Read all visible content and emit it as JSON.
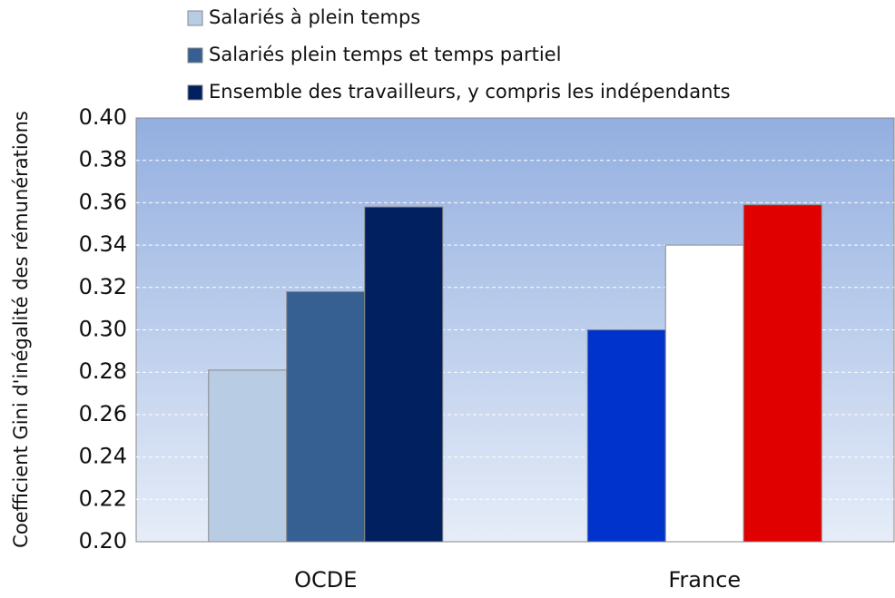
{
  "chart_data": {
    "type": "bar",
    "y_label": "Coefficient Gini d'inégalité des rémunérations",
    "categories": [
      "OCDE",
      "France"
    ],
    "series": [
      {
        "name": "Salariés à plein temps",
        "color": "#b8cce4",
        "bar_colors": [
          "#b8cce4",
          "#0033cc"
        ],
        "values": [
          0.281,
          0.3
        ]
      },
      {
        "name": "Salariés plein temps et temps partiel",
        "color": "#376092",
        "bar_colors": [
          "#376092",
          "#ffffff"
        ],
        "values": [
          0.318,
          0.34
        ]
      },
      {
        "name": "Ensemble des travailleurs, y compris les indépendants",
        "color": "#002060",
        "bar_colors": [
          "#002060",
          "#e00000"
        ],
        "values": [
          0.358,
          0.359
        ]
      }
    ],
    "ylim": [
      0.2,
      0.4
    ],
    "yticks": [
      {
        "value": 0.2,
        "label": "0.20"
      },
      {
        "value": 0.22,
        "label": "0.22"
      },
      {
        "value": 0.24,
        "label": "0.24"
      },
      {
        "value": 0.26,
        "label": "0.26"
      },
      {
        "value": 0.28,
        "label": "0.28"
      },
      {
        "value": 0.3,
        "label": "0.30"
      },
      {
        "value": 0.32,
        "label": "0.32"
      },
      {
        "value": 0.34,
        "label": "0.34"
      },
      {
        "value": 0.36,
        "label": "0.36"
      },
      {
        "value": 0.38,
        "label": "0.38"
      },
      {
        "value": 0.4,
        "label": "0.40"
      }
    ],
    "grid": true,
    "legend": "top"
  }
}
